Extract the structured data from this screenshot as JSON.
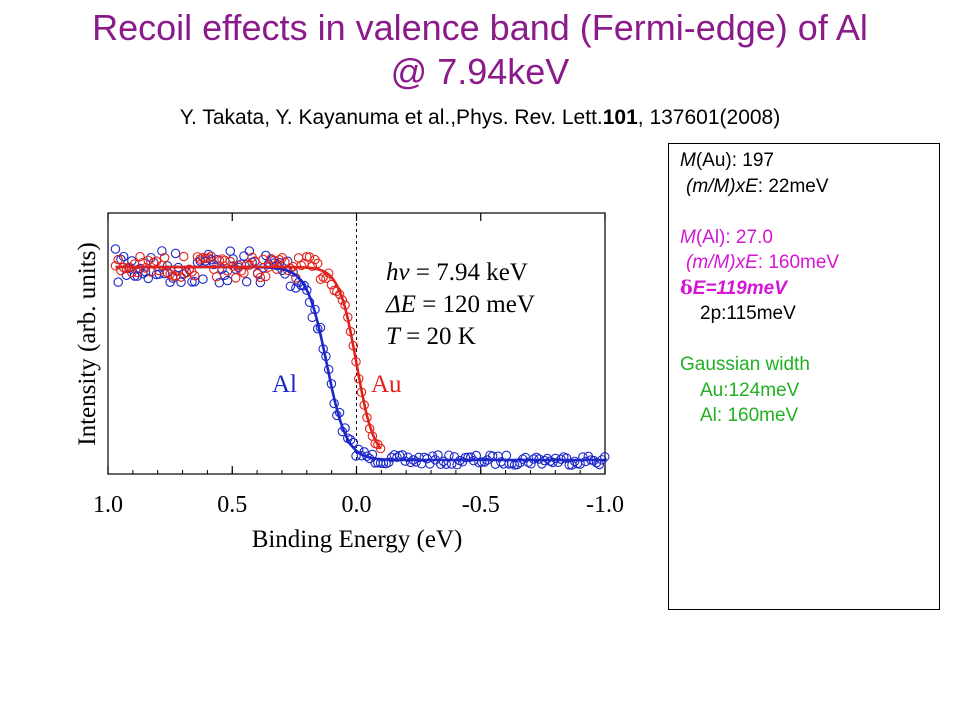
{
  "title": {
    "line1": "Recoil effects in valence band (Fermi-edge) of Al",
    "line2": "@ 7.94keV"
  },
  "citation": {
    "authors": "Y. Takata, Y. Kayanuma et al.,Phys. Rev. Lett.",
    "volume": "101",
    "rest": ", 137601(2008)"
  },
  "colors": {
    "title": "#8b1a8b",
    "au": "#e0221b",
    "al": "#1c27c9",
    "delta": "#d416d4",
    "gauss": "#22b022"
  },
  "chart_data": {
    "type": "scatter",
    "xlabel": "Binding Energy (eV)",
    "ylabel": "Intensity (arb. units)",
    "xlim": [
      1.0,
      -1.0
    ],
    "ylim": [
      0,
      1
    ],
    "x_reversed": true,
    "x_ticks": [
      "1.0",
      "0.5",
      "0.0",
      "-0.5",
      "-1.0"
    ],
    "reference_line": {
      "x": 0.0,
      "style": "dashed"
    },
    "annotations": {
      "hv_sym": "hν",
      "hv_val": " = 7.94 keV",
      "de_sym": "ΔE",
      "de_val": " = 120 meV",
      "t_sym": "T",
      "t_val": " = 20 K"
    },
    "series": [
      {
        "name": "Au",
        "color": "#e0221b",
        "edge_eV": 0.0,
        "width_eV": 0.035,
        "x_range": [
          0.97,
          -0.1
        ]
      },
      {
        "name": "Al",
        "color": "#1c27c9",
        "edge_eV": 0.12,
        "width_eV": 0.04,
        "x_range": [
          0.97,
          -1.0
        ]
      }
    ]
  },
  "infobox": {
    "m_au_sym": "M",
    "m_au": "(Au): 197",
    "recoil_au_sym": "(m/M)xE",
    "recoil_au": ": 22meV",
    "m_al_sym": "M",
    "m_al": "(Al): 27.0",
    "recoil_al_sym": "(m/M)xE",
    "recoil_al": ": 160meV",
    "delta_sym": "δ",
    "delta": "E=119meV",
    "twop": "2p:115meV",
    "gauss_title": "Gaussian width",
    "gauss_au": "Au:124meV",
    "gauss_al": "Al: 160meV"
  }
}
